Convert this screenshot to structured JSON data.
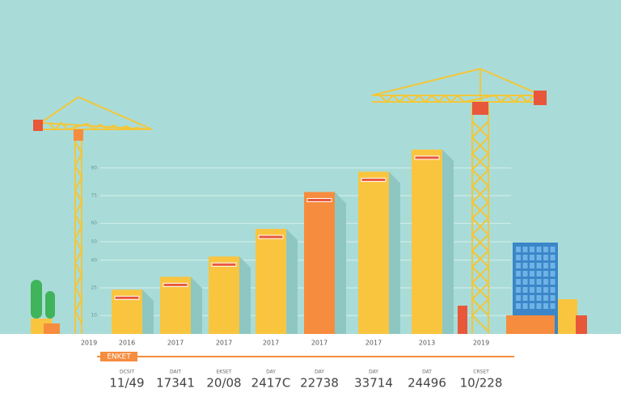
{
  "chart_data": {
    "type": "bar",
    "categories": [
      "2019",
      "2016",
      "2017",
      "2017",
      "2017",
      "2017",
      "2017",
      "2013",
      "2019"
    ],
    "values": [
      null,
      24,
      31,
      42,
      57,
      77,
      88,
      100,
      null
    ],
    "colors": [
      null,
      "#f9c53f",
      "#f9c53f",
      "#f9c53f",
      "#f9c53f",
      "#f68c3e",
      "#f9c53f",
      "#f9c53f",
      null
    ],
    "ylim": [
      0,
      100
    ],
    "yticks": [
      10,
      25,
      40,
      50,
      60,
      75,
      90
    ],
    "grid": true
  },
  "footer": {
    "tag": "ENKET",
    "stats": [
      {
        "label": "DCSIT",
        "value": "11/49"
      },
      {
        "label": "DAIT",
        "value": "17341"
      },
      {
        "label": "EKSET",
        "value": "20/08"
      },
      {
        "label": "DAY",
        "value": "2417C"
      },
      {
        "label": "DAY",
        "value": "22738"
      },
      {
        "label": "DAY",
        "value": "33714"
      },
      {
        "label": "DAT",
        "value": "24496"
      },
      {
        "label": "CRSET",
        "value": "10/228"
      }
    ]
  }
}
